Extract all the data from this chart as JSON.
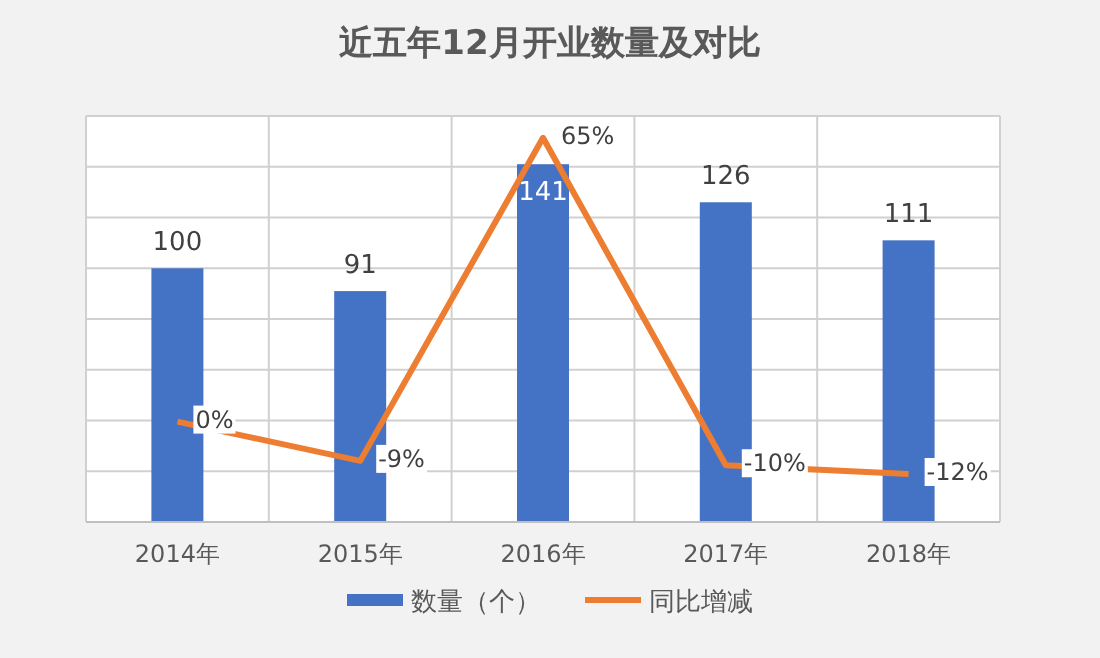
{
  "chart_data": {
    "type": "bar",
    "title": "近五年12月开业数量及对比",
    "categories": [
      "2014年",
      "2015年",
      "2016年",
      "2017年",
      "2018年"
    ],
    "series": [
      {
        "name": "数量（个）",
        "color": "#4472c4",
        "values": [
          100,
          91,
          141,
          126,
          111
        ],
        "value_labels": [
          "100",
          "91",
          "141",
          "126",
          "111"
        ]
      },
      {
        "name": "同比增减",
        "type": "line",
        "axis": "y2",
        "color": "#ed7d31",
        "values": [
          0,
          -9,
          65,
          -10,
          -12
        ],
        "value_labels": [
          "0%",
          "-9%",
          "65%",
          "-10%",
          "-12%"
        ]
      }
    ],
    "ylim": [
      0,
      160
    ],
    "yticks": [
      {
        "value": 0,
        "label": null
      },
      {
        "value": 20,
        "label": null
      },
      {
        "value": 40,
        "label": null
      },
      {
        "value": 60,
        "label": null
      },
      {
        "value": 80,
        "label": null
      },
      {
        "value": 100,
        "label": null
      },
      {
        "value": 120,
        "label": null
      },
      {
        "value": 140,
        "label": null
      },
      {
        "value": 160,
        "label": null
      }
    ],
    "y2lim": [
      -23,
      70
    ],
    "tick_labels": "x",
    "grid": true,
    "legend": "bottom"
  }
}
